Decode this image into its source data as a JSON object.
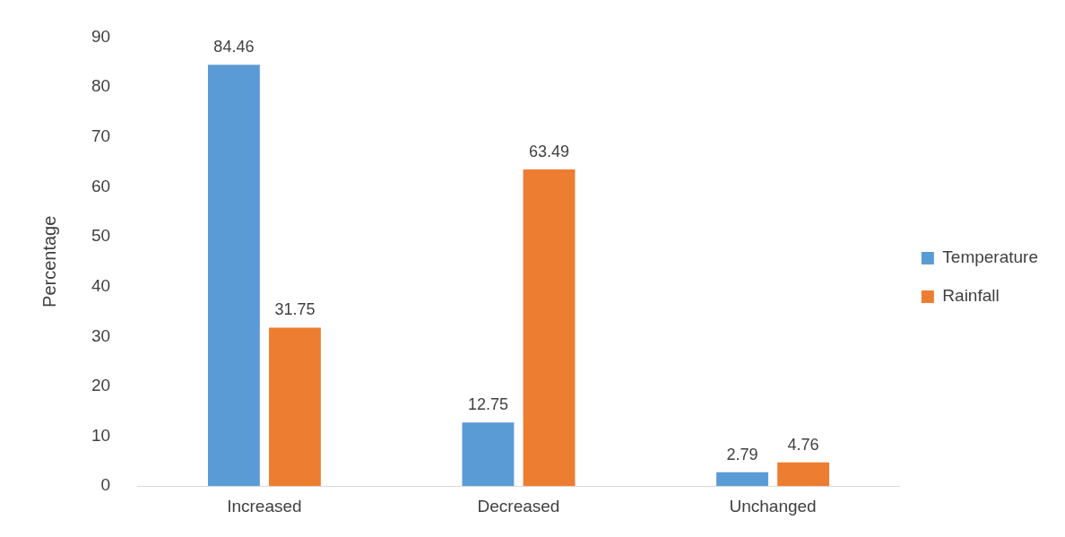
{
  "chart_data": {
    "type": "bar",
    "ylabel": "Percentage",
    "categories": [
      "Increased",
      "Decreased",
      "Unchanged"
    ],
    "series": [
      {
        "name": "Temperature",
        "color": "#5b9bd5",
        "values": [
          84.46,
          12.75,
          2.79
        ]
      },
      {
        "name": "Rainfall",
        "color": "#ed7d31",
        "values": [
          31.75,
          63.49,
          4.76
        ]
      }
    ],
    "ylim": [
      0,
      90
    ],
    "yticks": [
      0,
      10,
      20,
      30,
      40,
      50,
      60,
      70,
      80,
      90
    ],
    "grid": false,
    "legend": "right",
    "data_labels": true
  }
}
